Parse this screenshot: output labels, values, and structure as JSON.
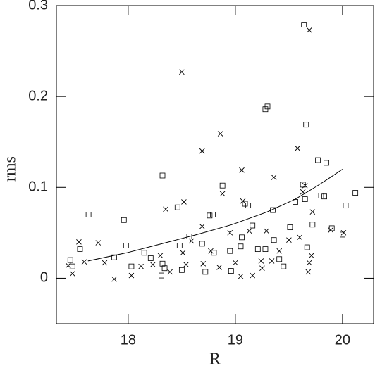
{
  "chart_data": {
    "type": "scatter",
    "x_label": "R",
    "y_label": "rms",
    "xlim": [
      17.33,
      20.29
    ],
    "ylim": [
      -0.05,
      0.3
    ],
    "xticks": [
      18,
      19,
      20
    ],
    "yticks": [
      0,
      0.1,
      0.2,
      0.3
    ],
    "color": "#000000",
    "series": [
      {
        "marker": "square",
        "color": "#000000",
        "x": [
          19.64,
          19.3,
          19.28,
          19.66,
          18.32,
          19.63,
          18.88,
          19.77,
          19.85,
          20.12,
          18.46,
          17.63,
          17.96,
          18.76,
          18.79,
          19.09,
          19.12,
          19.35,
          19.56,
          19.65,
          19.8,
          19.83,
          20.03,
          20.0,
          19.9,
          19.72,
          19.51,
          17.46,
          17.55,
          17.48,
          17.98,
          18.15,
          18.32,
          18.34,
          18.5,
          18.57,
          18.69,
          18.8,
          18.95,
          19.06,
          19.16,
          19.21,
          19.28,
          19.41,
          19.45,
          18.96,
          18.72,
          19.67,
          18.03,
          18.21,
          17.87,
          18.31,
          18.48,
          19.05,
          19.36
        ],
        "values": [
          0.279,
          0.189,
          0.186,
          0.169,
          0.113,
          0.103,
          0.102,
          0.13,
          0.127,
          0.094,
          0.078,
          0.07,
          0.064,
          0.069,
          0.07,
          0.082,
          0.08,
          0.075,
          0.084,
          0.087,
          0.091,
          0.09,
          0.08,
          0.048,
          0.055,
          0.059,
          0.056,
          0.02,
          0.032,
          0.013,
          0.036,
          0.028,
          0.016,
          0.011,
          0.009,
          0.046,
          0.038,
          0.028,
          0.03,
          0.045,
          0.058,
          0.032,
          0.032,
          0.021,
          0.013,
          0.008,
          0.007,
          0.034,
          0.013,
          0.022,
          0.023,
          0.003,
          0.036,
          0.035,
          0.042
        ]
      },
      {
        "marker": "cross",
        "color": "#000000",
        "x": [
          19.69,
          18.5,
          18.86,
          19.58,
          18.69,
          19.06,
          19.36,
          18.88,
          19.65,
          19.07,
          18.52,
          18.35,
          17.54,
          17.72,
          19.63,
          19.72,
          20.01,
          19.89,
          17.48,
          17.44,
          17.59,
          17.87,
          17.78,
          18.03,
          18.12,
          18.23,
          18.39,
          18.54,
          18.7,
          18.85,
          19.0,
          19.05,
          19.16,
          19.25,
          19.34,
          19.41,
          19.5,
          19.6,
          19.68,
          19.69,
          19.71,
          18.69,
          18.95,
          19.13,
          19.24,
          18.77,
          18.51,
          18.3,
          18.59,
          19.29
        ],
        "values": [
          0.273,
          0.227,
          0.159,
          0.143,
          0.14,
          0.119,
          0.111,
          0.093,
          0.102,
          0.085,
          0.084,
          0.076,
          0.04,
          0.039,
          0.095,
          0.073,
          0.05,
          0.053,
          0.005,
          0.014,
          0.018,
          -0.001,
          0.017,
          0.003,
          0.013,
          0.015,
          0.007,
          0.015,
          0.016,
          0.012,
          0.017,
          0.002,
          0.003,
          0.011,
          0.019,
          0.03,
          0.042,
          0.045,
          0.007,
          0.017,
          0.025,
          0.057,
          0.05,
          0.052,
          0.019,
          0.03,
          0.028,
          0.025,
          0.041,
          0.052
        ]
      },
      {
        "marker": "line",
        "color": "#000000",
        "x": [
          17.625,
          17.986,
          18.314,
          18.641,
          18.969,
          19.297,
          19.559,
          19.756,
          19.887,
          20.0
        ],
        "values": [
          0.019,
          0.028,
          0.038,
          0.048,
          0.059,
          0.073,
          0.087,
          0.101,
          0.111,
          0.12
        ]
      }
    ]
  }
}
